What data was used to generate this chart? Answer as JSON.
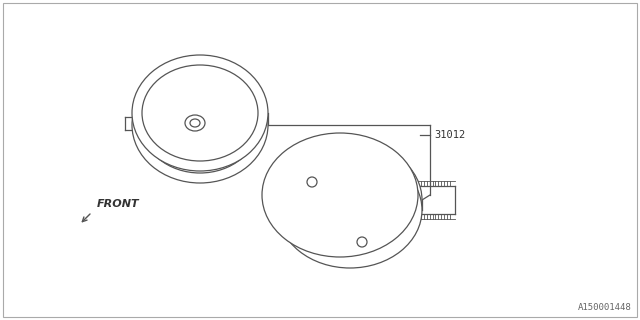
{
  "bg_color": "#ffffff",
  "part_number": "31012",
  "diagram_id": "A150001448",
  "front_label": "FRONT",
  "fig_width": 6.4,
  "fig_height": 3.2,
  "dpi": 100,
  "line_color": "#555555",
  "text_color": "#333333",
  "lw": 0.9
}
